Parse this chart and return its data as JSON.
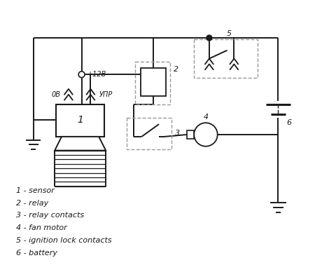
{
  "background": "#ffffff",
  "line_color": "#1a1a1a",
  "dashed_color": "#999999",
  "labels": [
    "1 - sensor",
    "2 - relay",
    "3 - relay contacts",
    "4 - fan motor",
    "5 - ignition lock contacts",
    "6 - battery"
  ],
  "figsize": [
    4.5,
    3.78
  ],
  "dpi": 100
}
